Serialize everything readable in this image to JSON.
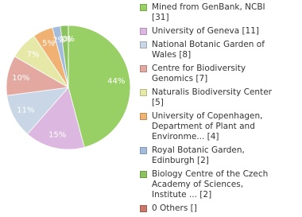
{
  "chart_data": {
    "type": "pie",
    "categories": [
      "Mined from GenBank, NCBI [31]",
      "University of Geneva [11]",
      "National Botanic Garden of Wales [8]",
      "Centre for Biodiversity Genomics [7]",
      "Naturalis Biodiversity Center [5]",
      "University of Copenhagen, Department of Plant and Environme... [4]",
      "Royal Botanic Garden, Edinburgh [2]",
      "Biology Centre of the Czech Academy of Sciences, Institute ... [2]",
      "0 Others []"
    ],
    "values": [
      44,
      15,
      11,
      10,
      7,
      5,
      2,
      2,
      0
    ],
    "value_labels": [
      "44%",
      "15%",
      "11%",
      "10%",
      "7%",
      "5%",
      "2%",
      "2%",
      "0%"
    ],
    "colors": [
      "#99d066",
      "#dcb8e0",
      "#c8d6e6",
      "#e3a8a0",
      "#e6e8a8",
      "#f0b272",
      "#a3bcdc",
      "#8cc260",
      "#c87868"
    ]
  }
}
